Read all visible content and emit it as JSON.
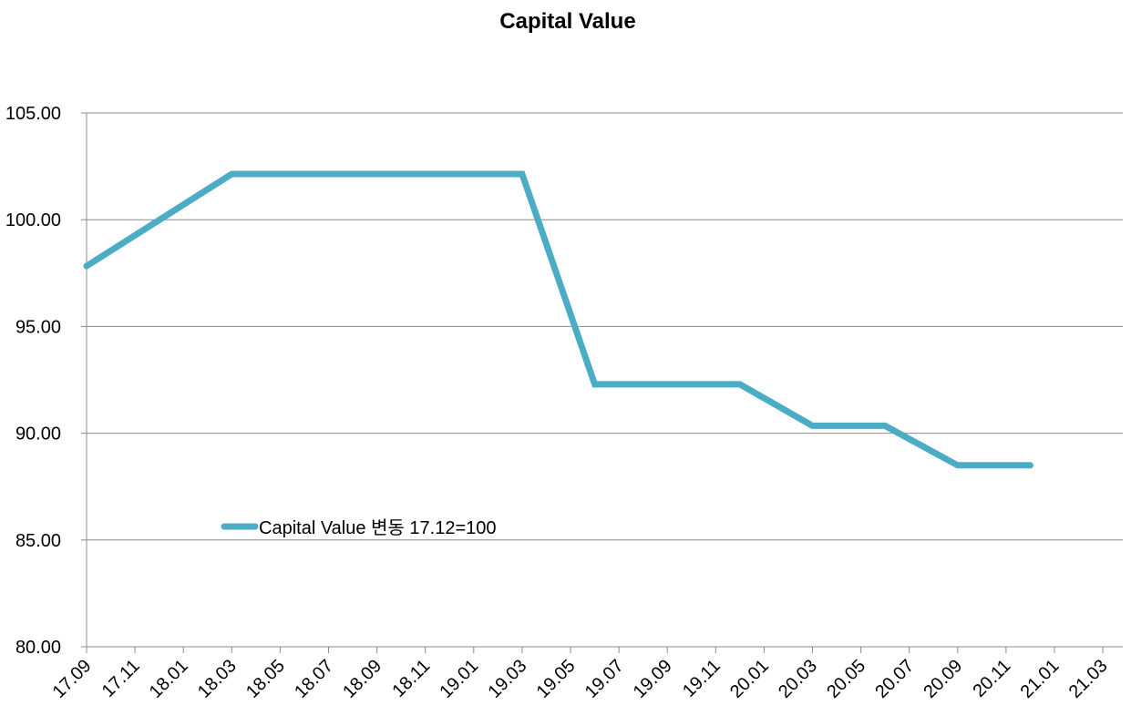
{
  "chart_data": {
    "type": "line",
    "title": "Capital Value",
    "xlabel": "",
    "ylabel": "",
    "x_tick_labels": [
      "17.09",
      "17.11",
      "18.01",
      "18.03",
      "18.05",
      "18.07",
      "18.09",
      "18.11",
      "19.01",
      "19.03",
      "19.05",
      "19.07",
      "19.09",
      "19.11",
      "20.01",
      "20.03",
      "20.05",
      "20.07",
      "20.09",
      "20.11",
      "21.01",
      "21.03"
    ],
    "ylim": [
      80,
      105
    ],
    "y_ticks": [
      80,
      85,
      90,
      95,
      100,
      105
    ],
    "y_tick_labels": [
      "80.00",
      "85.00",
      "90.00",
      "95.00",
      "100.00",
      "105.00"
    ],
    "grid": "horizontal",
    "legend_position": "inside-lower-left",
    "series": [
      {
        "name": "Capital Value 변동 17.12=100",
        "color": "#4BACC6",
        "x": [
          "17.09",
          "18.03",
          "19.03",
          "19.06",
          "19.12",
          "20.03",
          "20.06",
          "20.09",
          "20.12"
        ],
        "values": [
          97.83,
          102.14,
          102.14,
          92.29,
          92.29,
          90.35,
          90.35,
          88.5,
          88.5
        ]
      }
    ]
  }
}
